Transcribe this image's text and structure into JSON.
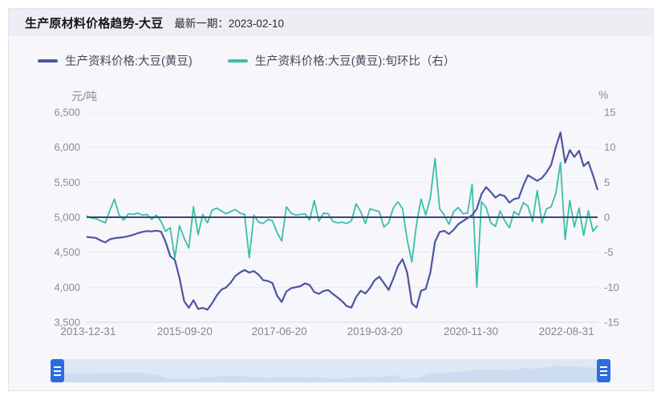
{
  "header": {
    "title": "生产原材料价格趋势-大豆",
    "latest_label": "最新一期：",
    "latest_date": "2023-02-10"
  },
  "legend": {
    "items": [
      {
        "label": "生产资料价格:大豆(黄豆)",
        "color": "#4c55a0"
      },
      {
        "label": "生产资料价格:大豆(黄豆):旬环比（右）",
        "color": "#38c0a9"
      }
    ]
  },
  "chart_data": {
    "type": "line",
    "title": "生产原材料价格趋势-大豆",
    "sampling_note": "values estimated from chart at ~monthly steps, 2013-12-31 to 2023-02-10",
    "x_start": "2013-12-31",
    "x_end": "2023-02-10",
    "x_axis": {
      "ticks": [
        {
          "label": "2013-12-31",
          "pos": 0.003
        },
        {
          "label": "2015-09-20",
          "pos": 0.192
        },
        {
          "label": "2017-06-20",
          "pos": 0.377
        },
        {
          "label": "2019-03-20",
          "pos": 0.564
        },
        {
          "label": "2020-11-30",
          "pos": 0.752
        },
        {
          "label": "2022-08-31",
          "pos": 0.939
        }
      ]
    },
    "y_left": {
      "name": "元/吨",
      "min": 3500,
      "max": 6500,
      "ticks": [
        "6,500",
        "6,000",
        "5,500",
        "5,000",
        "4,500",
        "4,000",
        "3,500"
      ]
    },
    "y_right": {
      "name": "%",
      "min": -15,
      "max": 15,
      "ticks": [
        "15",
        "10",
        "5",
        "0",
        "-5",
        "-10",
        "-15"
      ]
    },
    "grid_color": "#e9e9f1",
    "axis_line_color": "#d9d9e2",
    "zero_line": {
      "axis": "right",
      "value": 0,
      "color": "#3f4472"
    },
    "series": [
      {
        "name": "生产资料价格:大豆(黄豆)",
        "axis": "left",
        "color": "#4c55a0",
        "values": [
          4720,
          4712,
          4705,
          4668,
          4640,
          4685,
          4700,
          4708,
          4716,
          4730,
          4748,
          4772,
          4790,
          4802,
          4798,
          4808,
          4795,
          4650,
          4445,
          4390,
          4130,
          3800,
          3705,
          3815,
          3690,
          3705,
          3680,
          3770,
          3880,
          3965,
          3995,
          4065,
          4160,
          4210,
          4245,
          4210,
          4230,
          4180,
          4100,
          4090,
          4060,
          3880,
          3790,
          3940,
          3985,
          4000,
          4015,
          4055,
          4030,
          3930,
          3905,
          3945,
          3960,
          3905,
          3855,
          3800,
          3730,
          3710,
          3860,
          3950,
          3910,
          3990,
          4100,
          4150,
          4060,
          3960,
          4120,
          4300,
          4400,
          4210,
          3770,
          3710,
          3950,
          3975,
          4210,
          4650,
          4790,
          4805,
          4760,
          4820,
          4900,
          4945,
          4990,
          5030,
          5120,
          5330,
          5430,
          5360,
          5280,
          5325,
          5300,
          5210,
          5260,
          5275,
          5450,
          5600,
          5560,
          5520,
          5560,
          5640,
          5750,
          6000,
          6210,
          5780,
          5960,
          5860,
          5950,
          5730,
          5790,
          5600,
          5390
        ]
      },
      {
        "name": "生产资料价格:大豆(黄豆):旬环比（右）",
        "axis": "right",
        "color": "#38c0a9",
        "values": [
          0.2,
          -0.1,
          -0.2,
          -0.5,
          -0.8,
          1.0,
          2.6,
          0.3,
          -0.4,
          0.5,
          0.4,
          0.6,
          0.3,
          0.4,
          -0.3,
          0.3,
          -0.6,
          -2.0,
          -1.5,
          -5.8,
          -1.2,
          -3.0,
          -4.4,
          1.5,
          -2.5,
          0.4,
          -0.8,
          1.0,
          1.3,
          0.9,
          0.5,
          0.8,
          1.1,
          0.6,
          0.4,
          -5.8,
          0.3,
          -0.7,
          -0.9,
          -0.3,
          -0.5,
          -2.2,
          -3.4,
          1.5,
          0.6,
          0.3,
          0.4,
          0.5,
          -0.4,
          2.4,
          -0.6,
          0.6,
          0.5,
          -0.6,
          -0.8,
          -0.7,
          -0.9,
          -0.5,
          1.9,
          0.8,
          -0.9,
          1.2,
          1.0,
          0.8,
          -1.4,
          -0.8,
          1.3,
          2.2,
          1.2,
          -3.2,
          -6.4,
          -1.0,
          2.6,
          0.3,
          2.8,
          8.4,
          1.2,
          0.3,
          -1.0,
          0.8,
          1.4,
          0.5,
          0.6,
          4.7,
          -10.0,
          2.2,
          1.4,
          -0.8,
          -1.3,
          0.9,
          -0.5,
          -1.5,
          0.8,
          0.3,
          2.1,
          1.6,
          -0.6,
          3.8,
          -0.8,
          1.2,
          1.5,
          3.4,
          7.8,
          -3.2,
          2.4,
          -1.4,
          1.3,
          -2.6,
          0.9,
          -2.0,
          -1.2
        ]
      }
    ]
  },
  "datazoom": {
    "track_color": "#dde8f6",
    "handle_color": "#2b6ce2",
    "silhouette_color": "#bcd2ec"
  }
}
